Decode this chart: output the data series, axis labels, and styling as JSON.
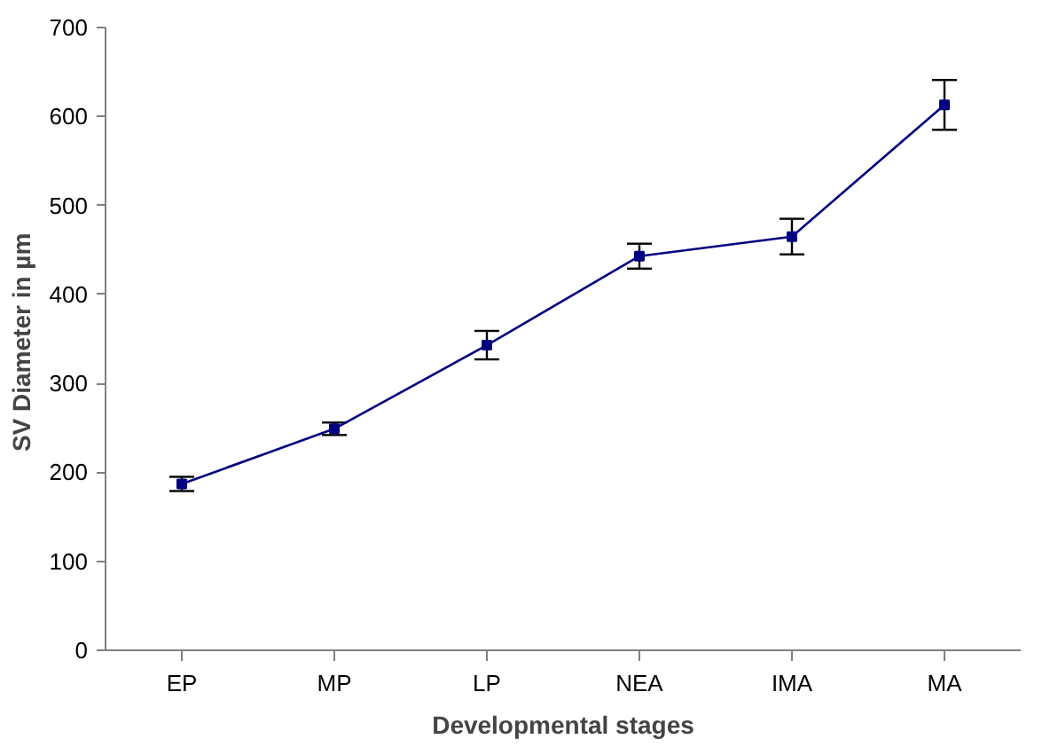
{
  "chart_data": {
    "type": "line",
    "xlabel": "Developmental stages",
    "ylabel": "SV Diameter in  µm",
    "categories": [
      "EP",
      "MP",
      "LP",
      "NEA",
      "IMA",
      "MA"
    ],
    "series": [
      {
        "color": "#000080",
        "values": [
          187,
          249,
          343,
          443,
          465,
          613
        ],
        "errors": [
          8,
          7,
          16,
          14,
          20,
          28
        ]
      }
    ],
    "ylim": [
      0,
      700
    ],
    "yticks": [
      0,
      100,
      200,
      300,
      400,
      500,
      600,
      700
    ],
    "grid": false,
    "marker": "square",
    "line_style": "solid"
  }
}
